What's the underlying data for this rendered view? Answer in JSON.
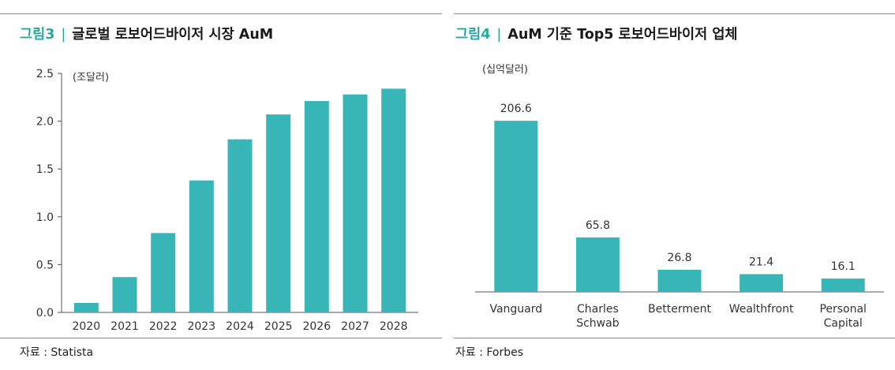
{
  "colors": {
    "bar": "#38b5b7",
    "accent": "#2aa6a2",
    "axis": "#555555"
  },
  "left_panel": {
    "figure_number": "그림3",
    "separator": "|",
    "title": "글로벌 로보어드바이저 시장 AuM",
    "source": "자료 : Statista"
  },
  "right_panel": {
    "figure_number": "그림4",
    "separator": "|",
    "title": "AuM 기준 Top5 로보어드바이저 업체",
    "source": "자료 : Forbes"
  },
  "chart_data": [
    {
      "type": "bar",
      "unit_label": "(조달러)",
      "categories": [
        "2020",
        "2021",
        "2022",
        "2023",
        "2024",
        "2025",
        "2026",
        "2027",
        "2028"
      ],
      "values": [
        0.1,
        0.37,
        0.83,
        1.38,
        1.81,
        2.07,
        2.21,
        2.28,
        2.34
      ],
      "yticks": [
        "0.0",
        "0.5",
        "1.0",
        "1.5",
        "2.0",
        "2.5"
      ],
      "ylim": [
        0,
        2.5
      ],
      "grid": false
    },
    {
      "type": "bar",
      "unit_label": "(십억달러)",
      "categories": [
        [
          "Vanguard"
        ],
        [
          "Charles",
          "Schwab"
        ],
        [
          "Betterment"
        ],
        [
          "Wealthfront"
        ],
        [
          "Personal",
          "Capital"
        ]
      ],
      "values": [
        206.6,
        65.8,
        26.8,
        21.4,
        16.1
      ],
      "data_labels": [
        "206.6",
        "65.8",
        "26.8",
        "21.4",
        "16.1"
      ],
      "ylim": [
        0,
        240
      ],
      "grid": false
    }
  ]
}
